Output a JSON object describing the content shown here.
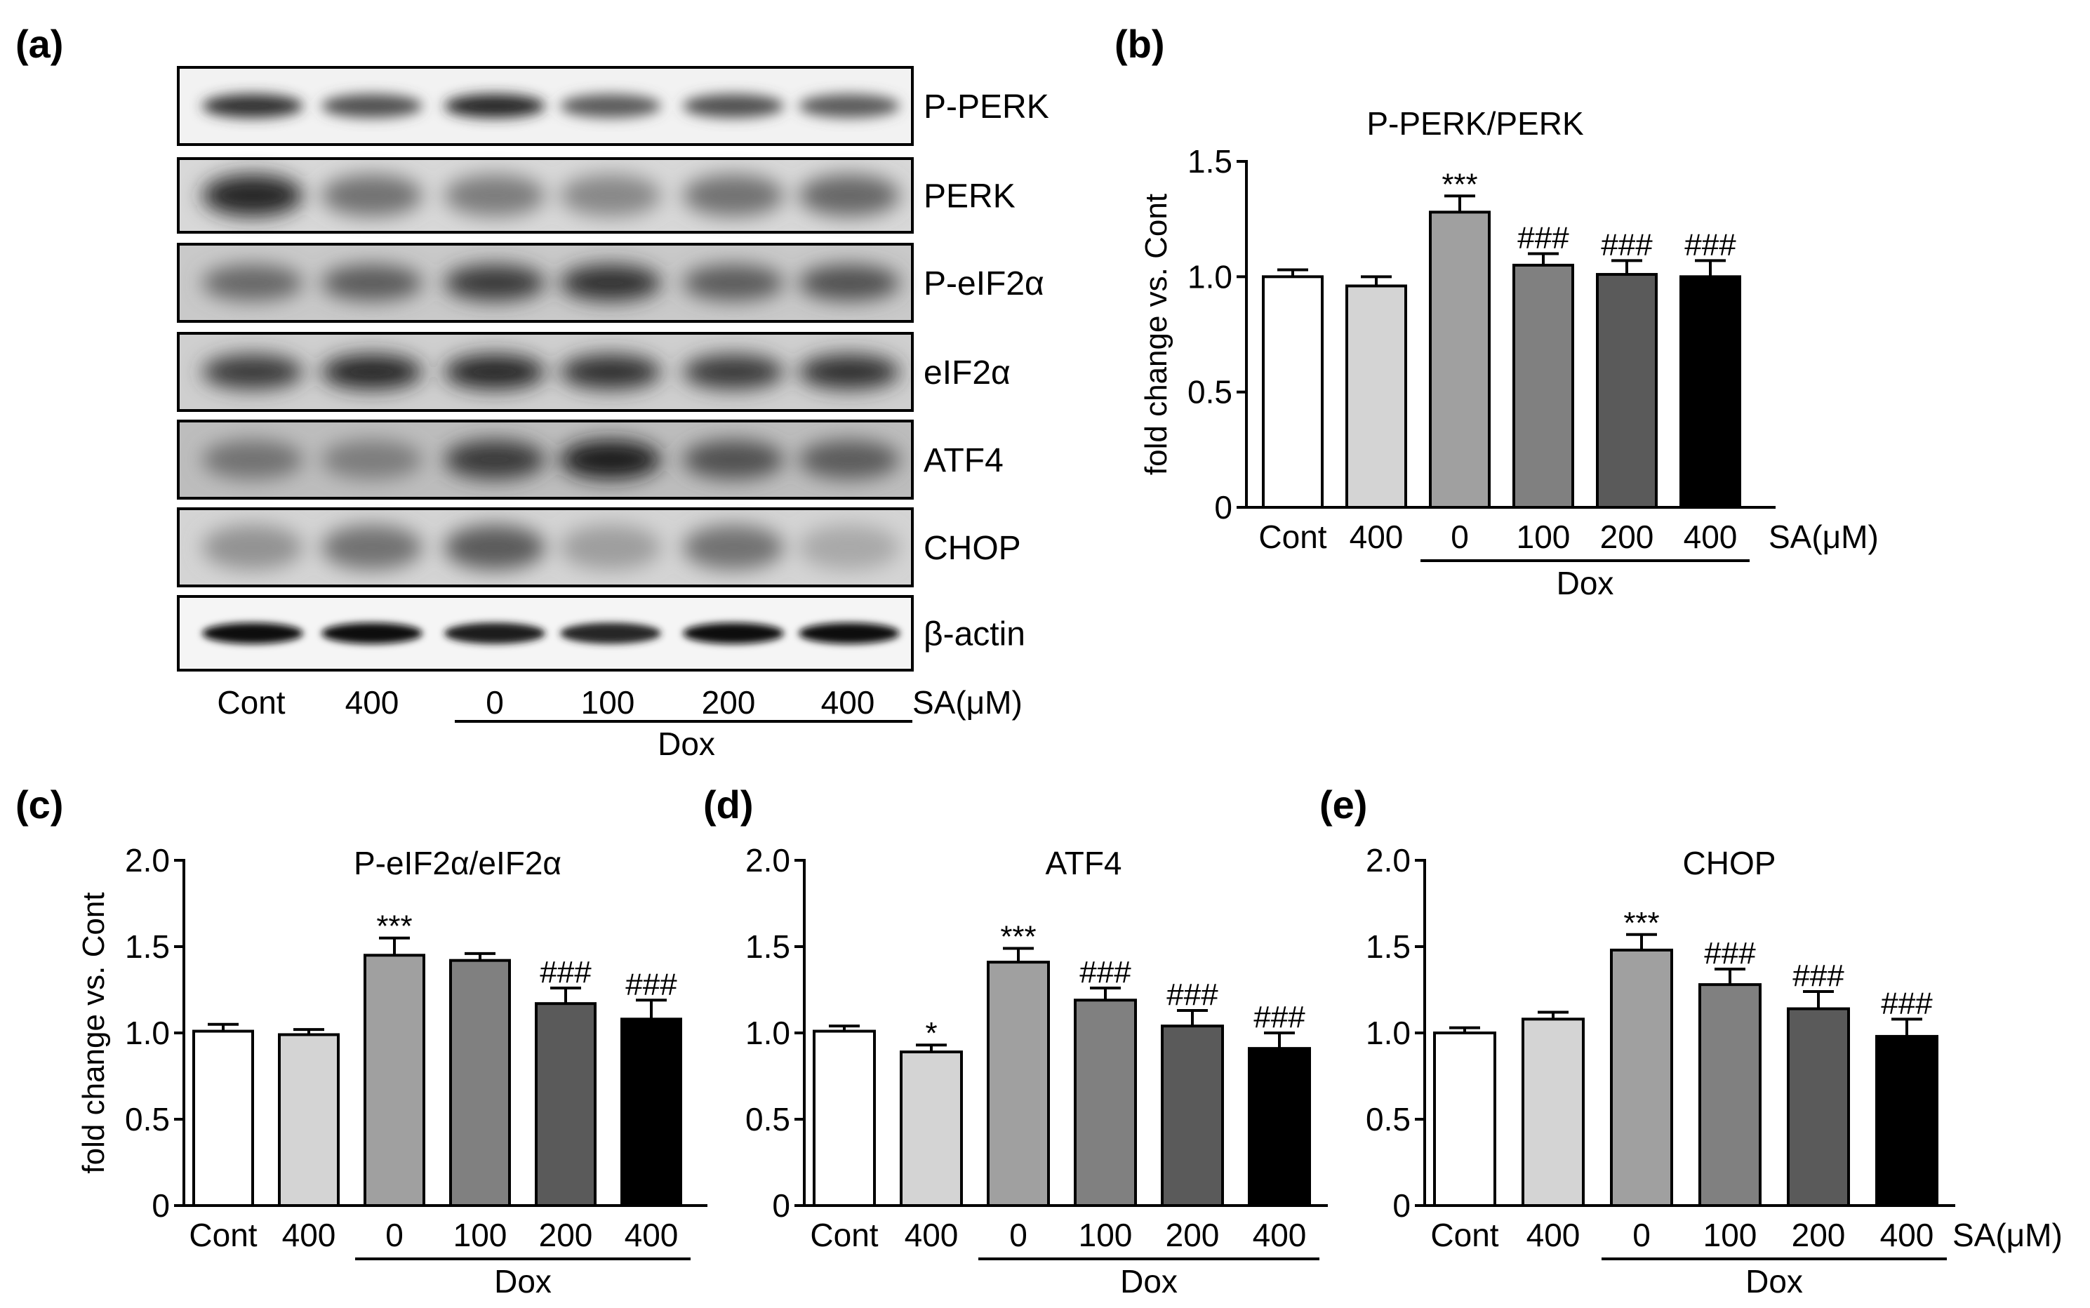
{
  "panel_a": {
    "letter": "(a)",
    "blot_labels": [
      "P-PERK",
      "PERK",
      "P-eIF2α",
      "eIF2α",
      "ATF4",
      "CHOP",
      "β-actin"
    ],
    "lane_labels": [
      "Cont",
      "400",
      "0",
      "100",
      "200",
      "400"
    ],
    "unit_label": "SA(μM)",
    "dox_label": "Dox"
  },
  "chart_data": [
    {
      "panel": "(b)",
      "type": "bar",
      "title": "P-PERK/PERK",
      "ylabel": "fold change vs. Cont",
      "xlabel": "",
      "categories": [
        "Cont",
        "400",
        "0",
        "100",
        "200",
        "400"
      ],
      "values": [
        1.0,
        0.96,
        1.28,
        1.05,
        1.01,
        1.0
      ],
      "errors": [
        0.03,
        0.04,
        0.07,
        0.05,
        0.06,
        0.07
      ],
      "significance": [
        "",
        "",
        "***",
        "###",
        "###",
        "###"
      ],
      "colors": [
        "#ffffff",
        "#d4d4d4",
        "#a0a0a0",
        "#808080",
        "#5a5a5a",
        "#000000"
      ],
      "ylim": [
        0,
        1.5
      ],
      "yticks": [
        0,
        0.5,
        1.0,
        1.5
      ],
      "ytick_labels": [
        "0",
        "0.5",
        "1.0",
        "1.5"
      ],
      "unit_label": "SA(μM)",
      "dox_label": "Dox",
      "grid": false
    },
    {
      "panel": "(c)",
      "type": "bar",
      "title": "P-eIF2α/eIF2α",
      "ylabel": "fold change vs. Cont",
      "xlabel": "",
      "categories": [
        "Cont",
        "400",
        "0",
        "100",
        "200",
        "400"
      ],
      "values": [
        1.01,
        0.99,
        1.45,
        1.42,
        1.17,
        1.08
      ],
      "errors": [
        0.04,
        0.03,
        0.1,
        0.04,
        0.09,
        0.11
      ],
      "significance": [
        "",
        "",
        "***",
        "",
        "###",
        "###"
      ],
      "colors": [
        "#ffffff",
        "#d4d4d4",
        "#a0a0a0",
        "#808080",
        "#5a5a5a",
        "#000000"
      ],
      "ylim": [
        0,
        2.0
      ],
      "yticks": [
        0,
        0.5,
        1.0,
        1.5,
        2.0
      ],
      "ytick_labels": [
        "0",
        "0.5",
        "1.0",
        "1.5",
        "2.0"
      ],
      "unit_label": "",
      "dox_label": "Dox",
      "grid": false
    },
    {
      "panel": "(d)",
      "type": "bar",
      "title": "ATF4",
      "ylabel": "",
      "xlabel": "",
      "categories": [
        "Cont",
        "400",
        "0",
        "100",
        "200",
        "400"
      ],
      "values": [
        1.01,
        0.89,
        1.41,
        1.19,
        1.04,
        0.91
      ],
      "errors": [
        0.03,
        0.04,
        0.08,
        0.07,
        0.09,
        0.09
      ],
      "significance": [
        "",
        "*",
        "***",
        "###",
        "###",
        "###"
      ],
      "colors": [
        "#ffffff",
        "#d4d4d4",
        "#a0a0a0",
        "#808080",
        "#5a5a5a",
        "#000000"
      ],
      "ylim": [
        0,
        2.0
      ],
      "yticks": [
        0,
        0.5,
        1.0,
        1.5,
        2.0
      ],
      "ytick_labels": [
        "0",
        "0.5",
        "1.0",
        "1.5",
        "2.0"
      ],
      "unit_label": "",
      "dox_label": "Dox",
      "grid": false
    },
    {
      "panel": "(e)",
      "type": "bar",
      "title": "CHOP",
      "ylabel": "",
      "xlabel": "",
      "categories": [
        "Cont",
        "400",
        "0",
        "100",
        "200",
        "400"
      ],
      "values": [
        1.0,
        1.08,
        1.48,
        1.28,
        1.14,
        0.98
      ],
      "errors": [
        0.03,
        0.04,
        0.09,
        0.09,
        0.1,
        0.1
      ],
      "significance": [
        "",
        "",
        "***",
        "###",
        "###",
        "###"
      ],
      "colors": [
        "#ffffff",
        "#d4d4d4",
        "#a0a0a0",
        "#808080",
        "#5a5a5a",
        "#000000"
      ],
      "ylim": [
        0,
        2.0
      ],
      "yticks": [
        0,
        0.5,
        1.0,
        1.5,
        2.0
      ],
      "ytick_labels": [
        "0",
        "0.5",
        "1.0",
        "1.5",
        "2.0"
      ],
      "unit_label": "SA(μM)",
      "dox_label": "Dox",
      "grid": false
    }
  ]
}
